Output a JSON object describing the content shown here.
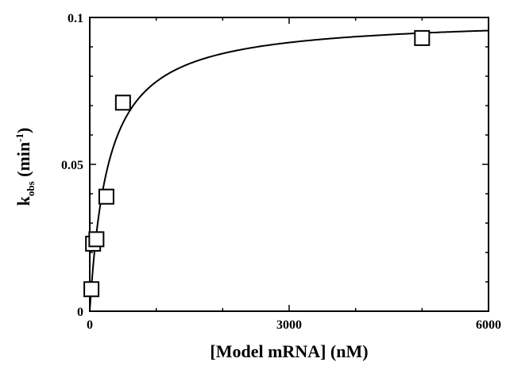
{
  "chart_data": {
    "type": "scatter",
    "xlabel": "[Model mRNA] (nM)",
    "ylabel": {
      "main": "k",
      "sub": "obs",
      "unit_open": " (min",
      "unit_sup": "-1",
      "unit_close": ")"
    },
    "xlim": [
      0,
      6000
    ],
    "ylim": [
      0,
      0.1
    ],
    "x_ticks": [
      {
        "value": 0,
        "label": "0"
      },
      {
        "value": 3000,
        "label": "3000"
      },
      {
        "value": 6000,
        "label": "6000"
      }
    ],
    "x_minor_ticks": [
      1000,
      2000,
      4000,
      5000
    ],
    "y_ticks": [
      {
        "value": 0,
        "label": "0"
      },
      {
        "value": 0.05,
        "label": "0.05"
      },
      {
        "value": 0.1,
        "label": "0.1"
      }
    ],
    "y_minor_ticks": [
      0.01,
      0.02,
      0.03,
      0.04,
      0.06,
      0.07,
      0.08,
      0.09
    ],
    "grid": false,
    "marker": "open-square",
    "series": [
      {
        "points": [
          {
            "x": 25,
            "y": 0.0075
          },
          {
            "x": 50,
            "y": 0.023
          },
          {
            "x": 100,
            "y": 0.0245
          },
          {
            "x": 250,
            "y": 0.039
          },
          {
            "x": 500,
            "y": 0.071
          },
          {
            "x": 5000,
            "y": 0.093
          }
        ]
      }
    ],
    "fit_curve": {
      "model": "hyperbolic",
      "vmax": 0.1,
      "k_half": 280
    }
  }
}
